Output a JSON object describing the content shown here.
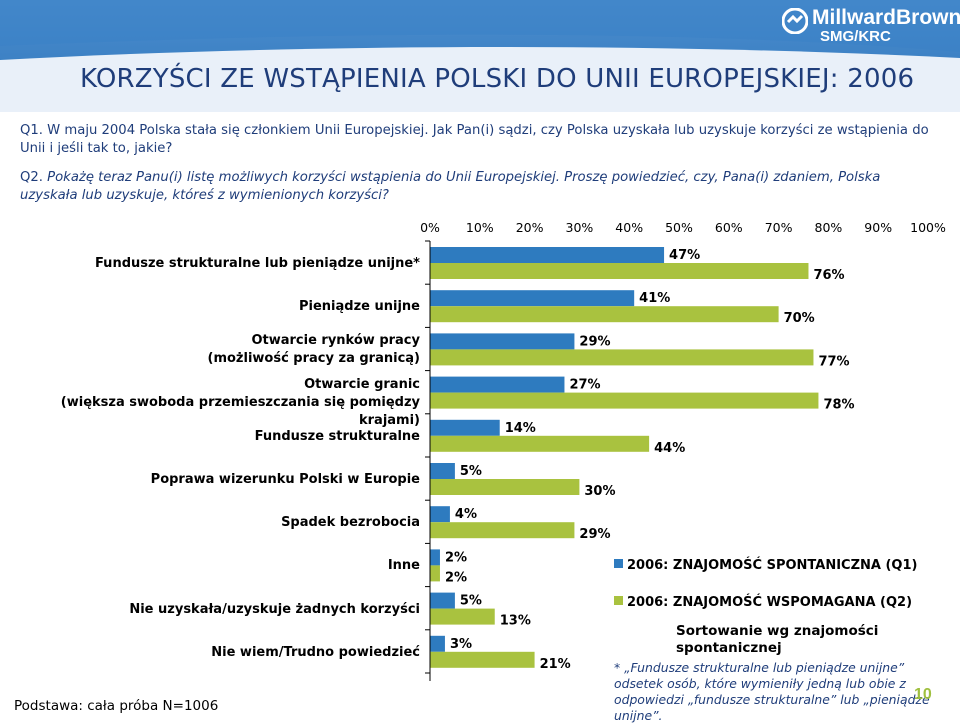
{
  "slide": {
    "title": "KORZYŚCI ZE WSTĄPIENIA POLSKI DO UNII EUROPEJSKIEJ: 2006",
    "logo": {
      "brand": "MillwardBrown",
      "sub": "SMG/KRC"
    },
    "q1": "Q1. W maju 2004 Polska stała się członkiem Unii Europejskiej. Jak Pan(i) sądzi, czy Polska uzyskała lub uzyskuje korzyści ze wstąpienia do Unii i jeśli tak to, jakie?",
    "q2_lead": "Q2.",
    "q2_text": " Pokażę teraz Panu(i) listę możliwych korzyści wstąpienia do Unii Europejskiej. Proszę powiedzieć, czy, Pana(i) zdaniem, Polska uzyskała lub uzyskuje, któreś z wymienionych korzyści?",
    "sort_note": "Sortowanie wg znajomości spontanicznej",
    "footnote": "* „Fundusze strukturalne lub pieniądze unijne” odsetek osób, które wymieniły jedną lub obie z odpowiedzi „fundusze strukturalne” lub „pieniądze unijne”.",
    "base": "Podstawa: cała próba N=1006",
    "page_number": "10"
  },
  "chart_data": {
    "type": "bar",
    "orientation": "horizontal",
    "x_ticks": [
      "0%",
      "10%",
      "20%",
      "30%",
      "40%",
      "50%",
      "60%",
      "70%",
      "80%",
      "90%",
      "100%"
    ],
    "xlim": [
      0,
      100
    ],
    "categories": [
      [
        "Fundusze strukturalne lub pieniądze unijne*"
      ],
      [
        "Pieniądze unijne"
      ],
      [
        "Otwarcie rynków pracy",
        "(możliwość pracy za granicą)"
      ],
      [
        "Otwarcie granic",
        "(większa swoboda przemieszczania się pomiędzy krajami)"
      ],
      [
        "Fundusze strukturalne"
      ],
      [
        "Poprawa wizerunku Polski w Europie"
      ],
      [
        "Spadek bezrobocia"
      ],
      [
        "Inne"
      ],
      [
        "Nie uzyskała/uzyskuje żadnych korzyści"
      ],
      [
        "Nie wiem/Trudno powiedzieć"
      ]
    ],
    "series": [
      {
        "name": "2006: ZNAJOMOŚĆ SPONTANICZNA (Q1)",
        "color": "#2e7bbf",
        "values": [
          47,
          41,
          29,
          27,
          14,
          5,
          4,
          2,
          5,
          3
        ],
        "labels": [
          "47%",
          "41%",
          "29%",
          "27%",
          "14%",
          "5%",
          "4%",
          "2%",
          "5%",
          "3%"
        ]
      },
      {
        "name": "2006: ZNAJOMOŚĆ WSPOMAGANA (Q2)",
        "color": "#a9c23f",
        "values": [
          76,
          70,
          77,
          78,
          44,
          30,
          29,
          2,
          13,
          21
        ],
        "labels": [
          "76%",
          "70%",
          "77%",
          "78%",
          "44%",
          "30%",
          "29%",
          "2%",
          "13%",
          "21%"
        ]
      }
    ]
  }
}
